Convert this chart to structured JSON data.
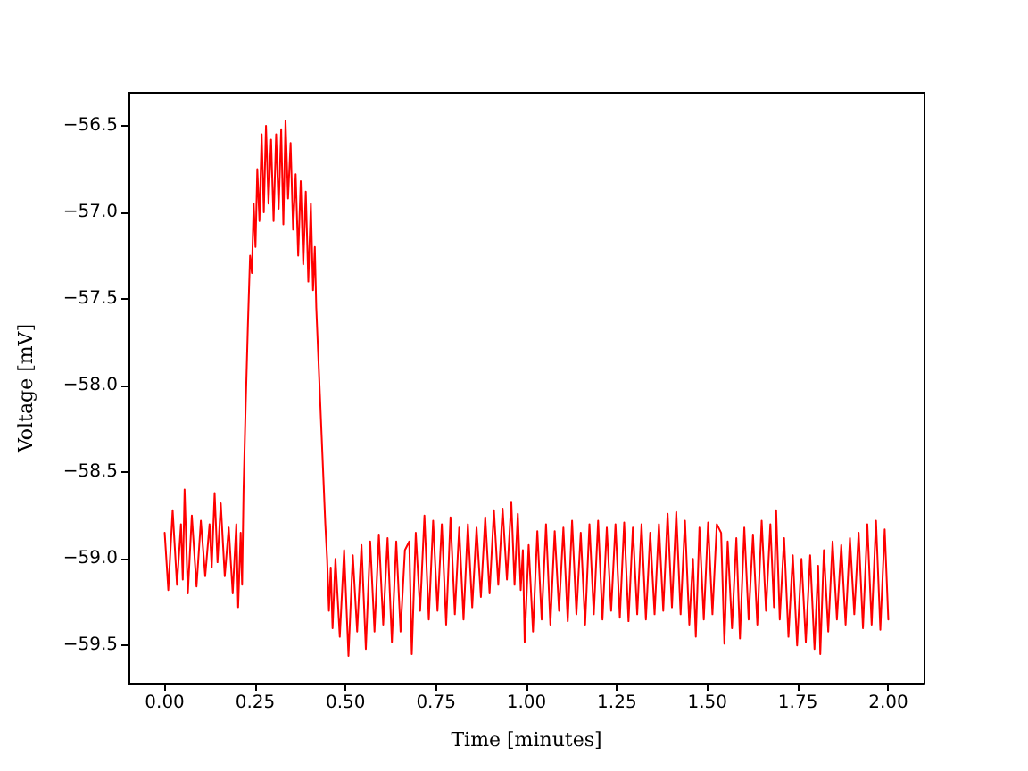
{
  "chart_data": {
    "type": "line",
    "xlabel": "Time [minutes]",
    "ylabel": "Voltage [mV]",
    "xlim": [
      -0.1,
      2.1
    ],
    "ylim": [
      -59.72,
      -56.31
    ],
    "xticks": [
      {
        "value": 0,
        "label": "0.00"
      },
      {
        "value": 0.25,
        "label": "0.25"
      },
      {
        "value": 0.5,
        "label": "0.50"
      },
      {
        "value": 0.75,
        "label": "0.75"
      },
      {
        "value": 1,
        "label": "1.00"
      },
      {
        "value": 1.25,
        "label": "1.25"
      },
      {
        "value": 1.5,
        "label": "1.50"
      },
      {
        "value": 1.75,
        "label": "1.75"
      },
      {
        "value": 2,
        "label": "2.00"
      }
    ],
    "yticks": [
      {
        "value": -59.5,
        "label": "−59.5"
      },
      {
        "value": -59,
        "label": "−59.0"
      },
      {
        "value": -58.5,
        "label": "−58.5"
      },
      {
        "value": -58,
        "label": "−58.0"
      },
      {
        "value": -57.5,
        "label": "−57.5"
      },
      {
        "value": -57,
        "label": "−57.0"
      },
      {
        "value": -56.5,
        "label": "−56.5"
      }
    ],
    "marker": "none",
    "line_style": "solid",
    "x": [
      0,
      0.01,
      0.022,
      0.034,
      0.045,
      0.05,
      0.055,
      0.064,
      0.075,
      0.088,
      0.1,
      0.112,
      0.124,
      0.13,
      0.138,
      0.146,
      0.155,
      0.166,
      0.177,
      0.188,
      0.198,
      0.203,
      0.21,
      0.214,
      0.218,
      0.224,
      0.23,
      0.236,
      0.241,
      0.246,
      0.251,
      0.256,
      0.262,
      0.268,
      0.274,
      0.28,
      0.287,
      0.294,
      0.301,
      0.308,
      0.315,
      0.322,
      0.328,
      0.334,
      0.341,
      0.348,
      0.355,
      0.362,
      0.369,
      0.376,
      0.383,
      0.39,
      0.397,
      0.404,
      0.41,
      0.415,
      0.419,
      0.424,
      0.429,
      0.434,
      0.439,
      0.444,
      0.449,
      0.454,
      0.459,
      0.464,
      0.472,
      0.484,
      0.496,
      0.508,
      0.52,
      0.532,
      0.544,
      0.556,
      0.568,
      0.58,
      0.592,
      0.604,
      0.616,
      0.628,
      0.64,
      0.652,
      0.664,
      0.676,
      0.683,
      0.694,
      0.706,
      0.718,
      0.73,
      0.742,
      0.754,
      0.766,
      0.778,
      0.79,
      0.802,
      0.814,
      0.826,
      0.838,
      0.85,
      0.862,
      0.874,
      0.886,
      0.898,
      0.91,
      0.922,
      0.934,
      0.946,
      0.958,
      0.967,
      0.976,
      0.984,
      0.99,
      0.995,
      1.006,
      1.018,
      1.03,
      1.042,
      1.054,
      1.066,
      1.078,
      1.09,
      1.102,
      1.114,
      1.126,
      1.138,
      1.15,
      1.162,
      1.174,
      1.186,
      1.198,
      1.21,
      1.222,
      1.234,
      1.246,
      1.258,
      1.27,
      1.282,
      1.294,
      1.306,
      1.318,
      1.33,
      1.342,
      1.354,
      1.366,
      1.378,
      1.39,
      1.402,
      1.414,
      1.426,
      1.438,
      1.45,
      1.46,
      1.468,
      1.478,
      1.49,
      1.502,
      1.514,
      1.526,
      1.538,
      1.547,
      1.556,
      1.568,
      1.58,
      1.59,
      1.602,
      1.614,
      1.626,
      1.638,
      1.65,
      1.662,
      1.674,
      1.684,
      1.69,
      1.7,
      1.712,
      1.724,
      1.736,
      1.748,
      1.76,
      1.772,
      1.784,
      1.796,
      1.806,
      1.812,
      1.822,
      1.834,
      1.846,
      1.858,
      1.87,
      1.882,
      1.894,
      1.906,
      1.918,
      1.93,
      1.942,
      1.954,
      1.966,
      1.978,
      1.99,
      2
    ],
    "series": [
      {
        "color": "#ff0000",
        "values": [
          -58.85,
          -59.18,
          -58.72,
          -59.15,
          -58.8,
          -59.12,
          -58.6,
          -59.2,
          -58.75,
          -59.16,
          -58.78,
          -59.1,
          -58.8,
          -59.05,
          -58.62,
          -59.02,
          -58.68,
          -59.1,
          -58.82,
          -59.2,
          -58.8,
          -59.28,
          -58.85,
          -59.15,
          -58.6,
          -58.1,
          -57.65,
          -57.25,
          -57.35,
          -56.95,
          -57.2,
          -56.75,
          -57.05,
          -56.55,
          -57,
          -56.5,
          -56.95,
          -56.58,
          -57.05,
          -56.55,
          -56.98,
          -56.52,
          -57.07,
          -56.47,
          -56.92,
          -56.6,
          -57.1,
          -56.78,
          -57.25,
          -56.82,
          -57.3,
          -56.88,
          -57.4,
          -56.95,
          -57.45,
          -57.2,
          -57.55,
          -57.8,
          -58.05,
          -58.3,
          -58.55,
          -58.8,
          -59,
          -59.3,
          -59.05,
          -59.4,
          -59,
          -59.45,
          -58.95,
          -59.56,
          -58.98,
          -59.42,
          -58.92,
          -59.52,
          -58.9,
          -59.42,
          -58.86,
          -59.38,
          -58.88,
          -59.48,
          -58.9,
          -59.42,
          -58.95,
          -58.9,
          -59.55,
          -58.85,
          -59.3,
          -58.75,
          -59.35,
          -58.78,
          -59.3,
          -58.8,
          -59.38,
          -58.76,
          -59.32,
          -58.82,
          -59.35,
          -58.8,
          -59.28,
          -58.82,
          -59.22,
          -58.76,
          -59.2,
          -58.72,
          -59.15,
          -58.71,
          -59.12,
          -58.67,
          -59.15,
          -58.74,
          -59.18,
          -58.95,
          -59.48,
          -58.92,
          -59.42,
          -58.84,
          -59.35,
          -58.8,
          -59.38,
          -58.84,
          -59.3,
          -58.82,
          -59.36,
          -58.78,
          -59.32,
          -58.85,
          -59.38,
          -58.8,
          -59.32,
          -58.78,
          -59.35,
          -58.82,
          -59.3,
          -58.8,
          -59.34,
          -58.79,
          -59.36,
          -58.82,
          -59.32,
          -58.8,
          -59.35,
          -58.85,
          -59.32,
          -58.8,
          -59.3,
          -58.74,
          -59.28,
          -58.73,
          -59.32,
          -58.78,
          -59.38,
          -59,
          -59.45,
          -58.82,
          -59.35,
          -58.79,
          -59.32,
          -58.8,
          -58.85,
          -59.49,
          -58.9,
          -59.4,
          -58.88,
          -59.46,
          -58.82,
          -59.35,
          -58.86,
          -59.38,
          -58.78,
          -59.3,
          -58.8,
          -59.28,
          -58.72,
          -59.35,
          -58.88,
          -59.45,
          -58.98,
          -59.5,
          -59,
          -59.48,
          -58.98,
          -59.52,
          -59.04,
          -59.55,
          -58.95,
          -59.42,
          -58.9,
          -59.35,
          -58.92,
          -59.38,
          -58.88,
          -59.32,
          -58.85,
          -59.4,
          -58.8,
          -59.38,
          -58.78,
          -59.41,
          -58.83,
          -59.35
        ]
      }
    ]
  }
}
